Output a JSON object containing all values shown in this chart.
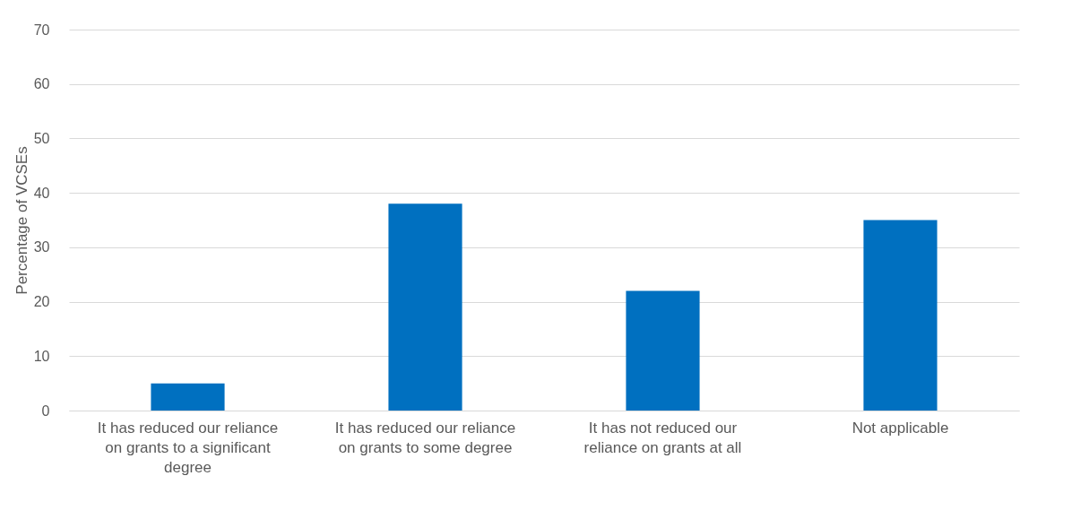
{
  "chart_data": {
    "type": "bar",
    "ylabel": "Percentage of VCSEs",
    "categories": [
      "It has reduced our reliance on grants to a significant degree",
      "It has reduced our reliance on grants to some degree",
      "It has not reduced our reliance on grants at all",
      "Not applicable"
    ],
    "values": [
      5,
      38,
      22,
      35
    ],
    "color": "#0070c0",
    "ylim": [
      0,
      70
    ],
    "yticks": [
      0,
      10,
      20,
      30,
      40,
      50,
      60,
      70
    ],
    "grid": "y"
  }
}
